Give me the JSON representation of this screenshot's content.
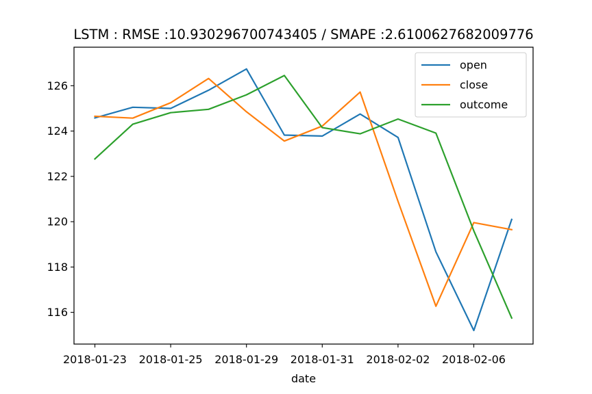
{
  "chart_data": {
    "type": "line",
    "title": "LSTM : RMSE :10.930296700743405 / SMAPE :2.6100627682009776",
    "xlabel": "date",
    "ylabel": "",
    "ylim": [
      114.6,
      127.7
    ],
    "yticks": [
      116,
      118,
      120,
      122,
      124,
      126
    ],
    "xticks": [
      {
        "label": "2018-01-23",
        "index": 0
      },
      {
        "label": "2018-01-25",
        "index": 2
      },
      {
        "label": "2018-01-29",
        "index": 4
      },
      {
        "label": "2018-01-31",
        "index": 6
      },
      {
        "label": "2018-02-02",
        "index": 8
      },
      {
        "label": "2018-02-06",
        "index": 10
      }
    ],
    "grid": false,
    "legend_position": "top-right",
    "series": [
      {
        "name": "open",
        "color": "#1f77b4",
        "values": [
          124.58,
          125.05,
          125.0,
          125.8,
          126.74,
          123.82,
          123.78,
          124.75,
          123.72,
          118.67,
          115.2,
          120.1
        ]
      },
      {
        "name": "close",
        "color": "#ff7f0e",
        "values": [
          124.65,
          124.57,
          125.25,
          126.32,
          124.85,
          123.56,
          124.22,
          125.72,
          120.9,
          116.27,
          119.96,
          119.65
        ]
      },
      {
        "name": "outcome",
        "color": "#2ca02c",
        "values": [
          122.77,
          124.3,
          124.81,
          124.96,
          125.6,
          126.45,
          124.15,
          123.88,
          124.53,
          123.91,
          119.6,
          115.75
        ]
      }
    ]
  }
}
